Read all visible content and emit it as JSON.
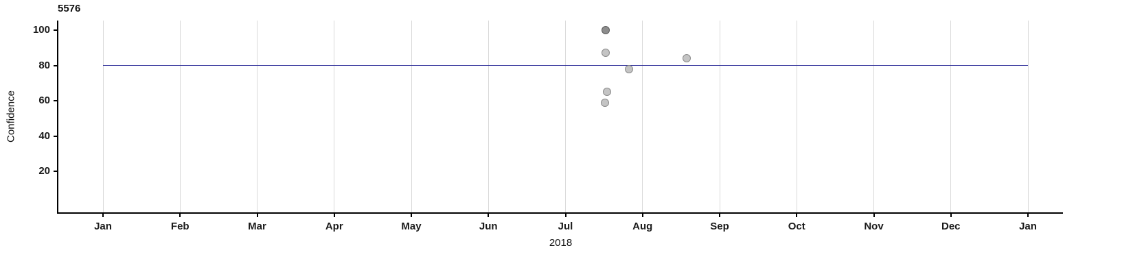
{
  "chart": {
    "title": "5576",
    "ylabel": "Confidence",
    "xlabel": "2018"
  },
  "chart_data": {
    "type": "scatter",
    "title": "5576",
    "xlabel": "2018",
    "ylabel": "Confidence",
    "x_axis": {
      "tick_labels": [
        "Jan",
        "Feb",
        "Mar",
        "Apr",
        "May",
        "Jun",
        "Jul",
        "Aug",
        "Sep",
        "Oct",
        "Nov",
        "Dec",
        "Jan"
      ],
      "range_months": [
        0,
        12
      ],
      "year": "2018"
    },
    "y_axis": {
      "ticks": [
        20,
        40,
        60,
        80,
        100
      ],
      "range": [
        0,
        105
      ]
    },
    "grid": "vertical-monthly-only",
    "legend": "none",
    "reference_line": {
      "y": 80,
      "color": "#32329b"
    },
    "points": [
      {
        "x_month": 6.52,
        "confidence": 100,
        "shade": "dark"
      },
      {
        "x_month": 6.52,
        "confidence": 87,
        "shade": "light"
      },
      {
        "x_month": 6.82,
        "confidence": 78,
        "shade": "light"
      },
      {
        "x_month": 7.57,
        "confidence": 84,
        "shade": "light"
      },
      {
        "x_month": 6.54,
        "confidence": 65,
        "shade": "light"
      },
      {
        "x_month": 6.51,
        "confidence": 59,
        "shade": "light"
      }
    ],
    "colors": {
      "point_fill": "#c4c4c4",
      "point_fill_dark": "#8d8d8d",
      "point_stroke": "#8a8a8a",
      "gridline": "#d9d9d9",
      "axis": "#000000",
      "reference_line": "#32329b"
    }
  }
}
